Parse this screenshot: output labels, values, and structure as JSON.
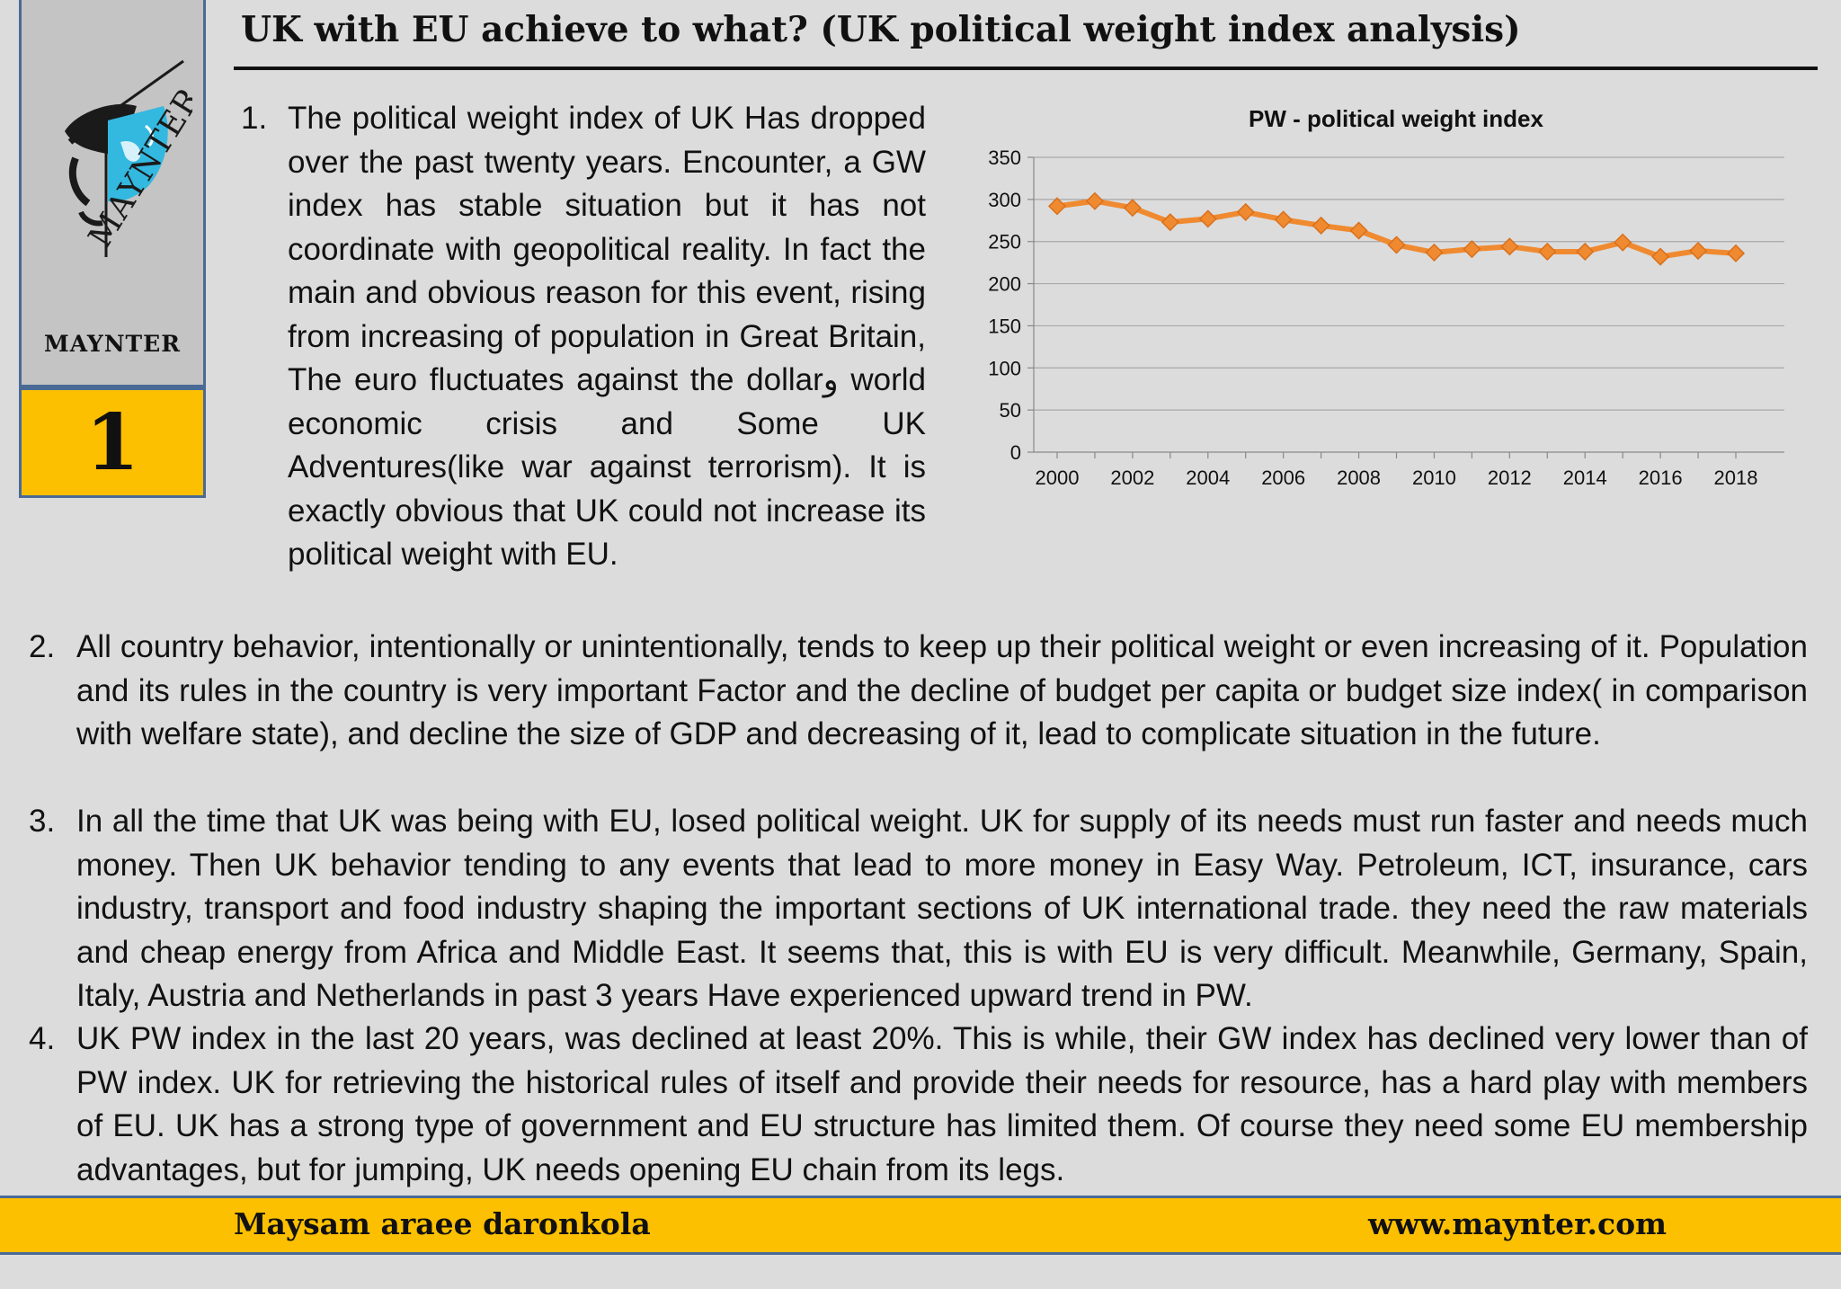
{
  "header": {
    "title": "UK with EU achieve to what? (UK political weight index analysis)"
  },
  "sidebar": {
    "logo_text": "MAYNTER",
    "brand": "MAYNTER",
    "slide_number": "1"
  },
  "paragraphs": [
    {
      "number": "1.",
      "text": "The political weight index of UK Has dropped over the past twenty years. Encounter, a GW index has stable situation but it has not coordinate with geopolitical reality. In fact the main and obvious reason for this event, rising from increasing of population in Great Britain, The euro fluctuates against the dollarو world economic crisis and Some UK Adventures(like war against terrorism). It is exactly obvious that UK could not increase its political weight with EU."
    },
    {
      "number": "2.",
      "text": "All country behavior, intentionally or unintentionally, tends to keep up their political weight or even increasing of it. Population and its rules in the country is very important Factor and the decline of budget per capita or budget size index( in comparison with welfare state), and decline the size of GDP and decreasing of it, lead to complicate situation in the future."
    },
    {
      "number": "3.",
      "text": "In all the time that UK was being with EU, losed political weight. UK for supply of its needs must run faster and needs much money. Then UK behavior tending to any events that lead to more money in Easy Way. Petroleum, ICT, insurance, cars industry, transport and food industry shaping the important sections of UK international trade. they need the raw materials and cheap energy from Africa and Middle East. It seems that, this is with EU is very difficult. Meanwhile, Germany, Spain, Italy, Austria and Netherlands in past 3 years  Have experienced upward trend in PW."
    },
    {
      "number": "4.",
      "text": "UK PW index in the last 20 years, was declined at least 20%. This is while, their GW index has declined very lower than of PW index. UK for retrieving the historical rules of itself and provide their needs for resource, has a hard play with members of EU. UK has a strong type of government and EU structure has limited them. Of course they need some EU membership advantages, but for jumping, UK needs opening EU chain from its legs."
    }
  ],
  "chart_data": {
    "type": "line",
    "title": "PW - political weight index",
    "xlabel": "",
    "ylabel": "",
    "x": [
      2000,
      2001,
      2002,
      2003,
      2004,
      2005,
      2006,
      2007,
      2008,
      2009,
      2010,
      2011,
      2012,
      2013,
      2014,
      2015,
      2016,
      2017,
      2018
    ],
    "series": [
      {
        "name": "PW - political weight index",
        "values": [
          292,
          298,
          290,
          273,
          277,
          285,
          276,
          269,
          263,
          246,
          237,
          241,
          244,
          238,
          238,
          249,
          232,
          239,
          236
        ],
        "color": "#f08a30"
      }
    ],
    "ylim": [
      0,
      350
    ],
    "yticks": [
      "0",
      "50",
      "100",
      "150",
      "200",
      "250",
      "300",
      "350"
    ],
    "xticks": [
      "2000",
      "2002",
      "2004",
      "2006",
      "2008",
      "2010",
      "2012",
      "2014",
      "2016",
      "2018"
    ],
    "grid": true,
    "legend": "none"
  },
  "footer": {
    "author": "Maysam araee daronkola",
    "website": "www.maynter.com"
  },
  "colors": {
    "accent": "#fcc000",
    "border": "#4a6a96",
    "background": "#dcdcdc",
    "line": "#f08a30"
  }
}
